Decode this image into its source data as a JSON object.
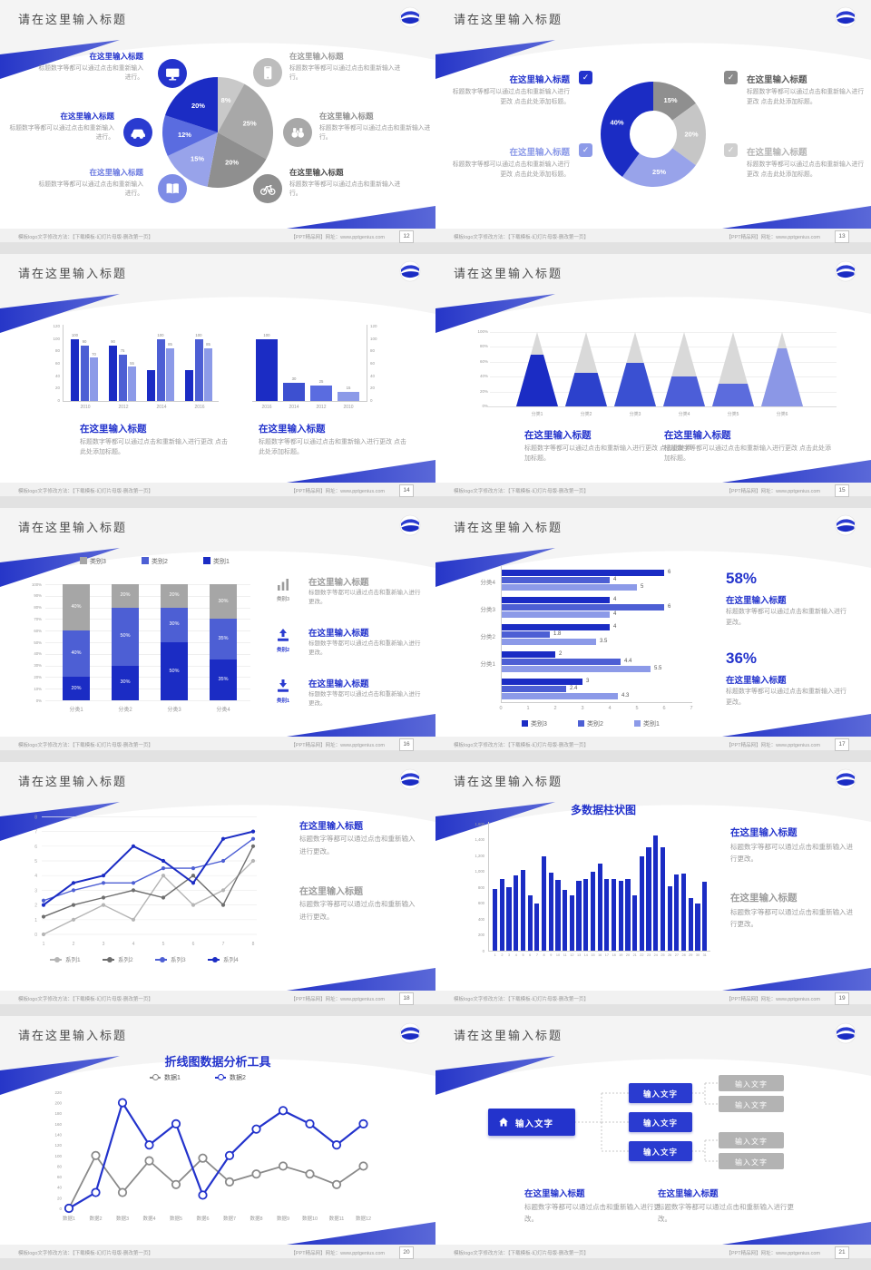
{
  "chrome": {
    "slide_title": "请在这里输入标题",
    "footer_left": "模板logo文字修改方法：【下载模板-幻灯片母版-删改第一页】",
    "footer_right": "【PPT精品网】网址：www.pptgenius.com",
    "pages": [
      "12",
      "13",
      "14",
      "15",
      "16",
      "17",
      "18",
      "19",
      "20",
      "21"
    ]
  },
  "colors": {
    "accent": "#2333cc",
    "dark_blue": "#1b2cc4",
    "mid_blue": "#4d5fd4",
    "light_blue": "#8c9ae8",
    "gray_dark": "#8f8f8f",
    "gray_mid": "#a8a8a8",
    "gray_light": "#c9c9c9",
    "heading_gray": "#9c9c9c",
    "body_text": "#8a8a8a"
  },
  "text": {
    "item_title": "在这里输入标题",
    "body_short": "标题数字等都可以通过点击和重新输入进行。",
    "body_change": "标题数字等都可以通过点击和重新输入进行更改。",
    "body_add": "标题数字等都可以通过点击和重新输入进行更改 点击此处添加标题。"
  },
  "chart_data": [
    {
      "type": "pie",
      "values": [
        8,
        25,
        20,
        15,
        12,
        20
      ],
      "labels": [
        "8%",
        "25%",
        "20%",
        "15%",
        "12%",
        "20%"
      ],
      "colors": [
        "#c9c9c9",
        "#a8a8a8",
        "#8f8f8f",
        "#98a3ea",
        "#5a6ce0",
        "#1b2cc4"
      ],
      "left_items": [
        {
          "icon": "monitor-icon",
          "circle": "#2333cc",
          "title_color": "#2333cc"
        },
        {
          "icon": "car-icon",
          "circle": "#2a3bd0",
          "title_color": "#2333cc"
        },
        {
          "icon": "book-icon",
          "circle": "#7e8ce6",
          "title_color": "#6a79e0"
        }
      ],
      "right_items": [
        {
          "icon": "smartphone-icon",
          "circle": "#bdbdbd",
          "title_color": "#9c9c9c"
        },
        {
          "icon": "binoculars-icon",
          "circle": "#a8a8a8",
          "title_color": "#8f8f8f"
        },
        {
          "icon": "bicycle-icon",
          "circle": "#8f8f8f",
          "title_color": "#4a4a4a"
        }
      ]
    },
    {
      "type": "donut",
      "values": [
        15,
        20,
        25,
        40
      ],
      "labels": [
        "15%",
        "20%",
        "25%",
        "40%"
      ],
      "colors": [
        "#8f8f8f",
        "#c6c6c6",
        "#98a3ea",
        "#1b2cc4"
      ],
      "items": [
        {
          "side": "left",
          "title_color": "#2333cc",
          "box": "#2333cc"
        },
        {
          "side": "left",
          "title_color": "#8c9ae8",
          "box": "#8c9ae8"
        },
        {
          "side": "right",
          "title_color": "#5a5a5a",
          "box": "#8a8a8a"
        },
        {
          "side": "right",
          "title_color": "#b5b5b5",
          "box": "#cfcfcf"
        }
      ]
    },
    {
      "type": "bars-duo",
      "left_chart": {
        "categories": [
          "2010",
          "2012",
          "2014",
          "2016"
        ],
        "y_ticks": [
          120,
          100,
          80,
          60,
          40,
          20,
          0
        ],
        "ymax": 120,
        "series_colors": [
          "#1b2cc4",
          "#4d5fd4",
          "#8c9ae8"
        ],
        "groups": [
          [
            100,
            90,
            70
          ],
          [
            90,
            75,
            55
          ],
          [
            50,
            100,
            85
          ],
          [
            50,
            100,
            85
          ]
        ],
        "bar_labels": [
          [
            "100",
            "90",
            "70"
          ],
          [
            "90",
            "75",
            "55"
          ],
          [
            "",
            "100",
            "85"
          ],
          [
            "",
            "100",
            "85"
          ]
        ]
      },
      "right_chart": {
        "categories": [
          "2016",
          "2014",
          "2012",
          "2010"
        ],
        "y_ticks": [
          120,
          100,
          80,
          60,
          40,
          20,
          0
        ],
        "ymax": 120,
        "values": [
          100,
          30,
          25,
          15
        ],
        "bar_labels": [
          "100",
          "30",
          "25",
          "15"
        ],
        "colors": [
          "#1b2cc4",
          "#3d50d0",
          "#5a6ce0",
          "#8c9ae8"
        ]
      }
    },
    {
      "type": "pyramid",
      "categories": [
        "分类1",
        "分类2",
        "分类3",
        "分类4",
        "分类5",
        "分类6"
      ],
      "fill_pct": [
        70,
        45,
        58,
        40,
        30,
        78
      ],
      "colors": [
        "#1b2cc4",
        "#2c41cc",
        "#3a50d2",
        "#4c5ed8",
        "#5c6cdd",
        "#8b97e6"
      ],
      "gray": "#d9d9d9",
      "y_ticks": [
        "100%",
        "80%",
        "60%",
        "40%",
        "20%",
        "0%"
      ]
    },
    {
      "type": "stacked",
      "categories": [
        "分类1",
        "分类2",
        "分类3",
        "分类4"
      ],
      "series": [
        {
          "name": "类别1",
          "color": "#1b2cc4",
          "values": [
            20,
            30,
            50,
            35
          ]
        },
        {
          "name": "类别2",
          "color": "#4d5fd4",
          "values": [
            40,
            50,
            30,
            35
          ]
        },
        {
          "name": "类别3",
          "color": "#a6a6a6",
          "values": [
            40,
            20,
            20,
            30
          ]
        }
      ],
      "legend": [
        {
          "label": "类别3",
          "color": "#a6a6a6"
        },
        {
          "label": "类别2",
          "color": "#4d5fd4"
        },
        {
          "label": "类别1",
          "color": "#1b2cc4"
        }
      ],
      "y_ticks": [
        "100%",
        "90%",
        "80%",
        "70%",
        "60%",
        "50%",
        "40%",
        "30%",
        "20%",
        "10%",
        "0%"
      ],
      "side_items": [
        {
          "icon": "bar-chart-icon",
          "icon_color": "#9c9c9c",
          "label": "类别3",
          "title_color": "#9c9c9c"
        },
        {
          "icon": "upload-icon",
          "icon_color": "#2a3bd0",
          "label": "类别2",
          "title_color": "#2333cc"
        },
        {
          "icon": "download-icon",
          "icon_color": "#2a3bd0",
          "label": "类别1",
          "title_color": "#2333cc"
        }
      ]
    },
    {
      "type": "hbar",
      "x_ticks": [
        0,
        1,
        2,
        3,
        4,
        5,
        6,
        7
      ],
      "xmax": 7,
      "series_colors": [
        "#1b2cc4",
        "#4d5fd4",
        "#8c9ae8"
      ],
      "groups": [
        {
          "label": "分类4",
          "values": [
            6,
            4,
            5
          ]
        },
        {
          "label": "分类3",
          "values": [
            4,
            6,
            4
          ]
        },
        {
          "label": "分类2",
          "values": [
            4,
            1.8,
            3.5
          ]
        },
        {
          "label": "分类1",
          "values": [
            2,
            4.4,
            5.5
          ]
        },
        {
          "label": "",
          "values": [
            3,
            2.4,
            4.3
          ]
        }
      ],
      "legend": [
        {
          "label": "类别3",
          "color": "#1b2cc4"
        },
        {
          "label": "类别2",
          "color": "#4d5fd4"
        },
        {
          "label": "类别1",
          "color": "#8c9ae8"
        }
      ],
      "stats": [
        {
          "pct": "58%"
        },
        {
          "pct": "36%"
        }
      ]
    },
    {
      "type": "line",
      "x_labels": [
        "1",
        "2",
        "3",
        "4",
        "5",
        "6",
        "7",
        "8"
      ],
      "y_ticks": [
        8,
        7,
        6,
        5,
        4,
        3,
        2,
        1,
        0
      ],
      "series": [
        {
          "name": "系列1",
          "color": "#b5b5b5",
          "values": [
            0,
            1,
            2,
            1,
            4,
            2,
            3,
            5
          ]
        },
        {
          "name": "系列2",
          "color": "#6e6e6e",
          "values": [
            1.2,
            2,
            2.5,
            3,
            2.5,
            4,
            2,
            6
          ]
        },
        {
          "name": "系列3",
          "color": "#4d5fd4",
          "values": [
            2.3,
            3,
            3.5,
            3.5,
            4.5,
            4.5,
            5,
            6.5
          ]
        },
        {
          "name": "系列4",
          "color": "#1b2cc4",
          "values": [
            2,
            3.5,
            4,
            6,
            5,
            3.5,
            6.5,
            7
          ]
        }
      ]
    },
    {
      "type": "columns",
      "title": "多数据柱状图",
      "color": "#1b2cc4",
      "ymax": 1600,
      "y_ticks": [
        "1,600",
        "1,400",
        "1,200",
        "1,000",
        "800",
        "600",
        "400",
        "200",
        "0"
      ],
      "x_labels": [
        "1",
        "2",
        "3",
        "4",
        "5",
        "6",
        "7",
        "8",
        "9",
        "10",
        "11",
        "12",
        "13",
        "14",
        "15",
        "16",
        "17",
        "18",
        "19",
        "20",
        "21",
        "22",
        "23",
        "24",
        "25",
        "26",
        "27",
        "28",
        "29",
        "30",
        "31"
      ],
      "values": [
        780,
        900,
        800,
        950,
        1020,
        700,
        600,
        1190,
        980,
        890,
        770,
        700,
        880,
        900,
        1000,
        1100,
        900,
        900,
        880,
        900,
        700,
        1190,
        1300,
        1450,
        1300,
        810,
        960,
        970,
        660,
        590,
        870
      ]
    },
    {
      "type": "line2",
      "title": "折线图数据分析工具",
      "x_labels": [
        "数据1",
        "数据2",
        "数据3",
        "数据4",
        "数据5",
        "数据6",
        "数据7",
        "数据8",
        "数据9",
        "数据10",
        "数据11",
        "数据12"
      ],
      "y_ticks": [
        220,
        200,
        180,
        160,
        140,
        120,
        100,
        80,
        60,
        40,
        20,
        0
      ],
      "series": [
        {
          "name": "数据1",
          "color": "#8a8a8a",
          "values": [
            0,
            100,
            30,
            90,
            45,
            95,
            50,
            65,
            80,
            65,
            45,
            80
          ]
        },
        {
          "name": "数据2",
          "color": "#2333cc",
          "values": [
            0,
            30,
            200,
            120,
            160,
            25,
            100,
            150,
            185,
            160,
            120,
            160
          ]
        }
      ]
    },
    {
      "type": "tree",
      "root_label": "输入文字",
      "root_icon": "home-icon",
      "mid_labels": [
        "输入文字",
        "输入文字",
        "输入文字"
      ],
      "leaf_labels": [
        "输入文字",
        "输入文字",
        "输入文字",
        "输入文字"
      ]
    }
  ]
}
